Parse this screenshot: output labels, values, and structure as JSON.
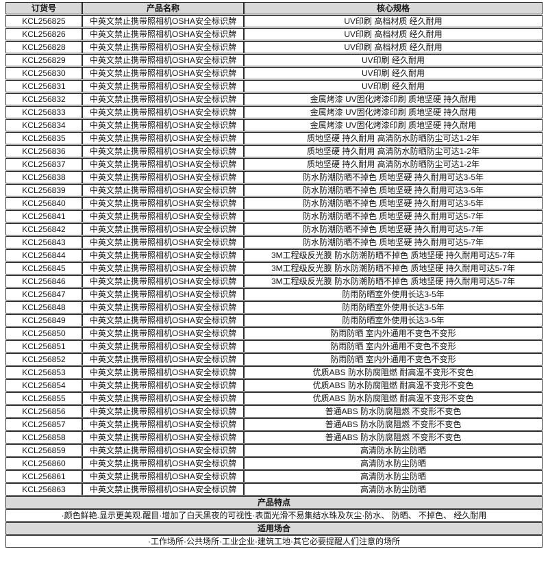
{
  "table": {
    "headers": [
      "订货号",
      "产品名称",
      "核心规格"
    ],
    "product_name": "中英文禁止携带照相机OSHA安全标识牌",
    "rows": [
      {
        "sku": "KCL256825",
        "spec": "UV印刷 高档材质 经久耐用"
      },
      {
        "sku": "KCL256826",
        "spec": "UV印刷 高档材质 经久耐用"
      },
      {
        "sku": "KCL256828",
        "spec": "UV印刷 高档材质 经久耐用"
      },
      {
        "sku": "KCL256829",
        "spec": "UV印刷 经久耐用"
      },
      {
        "sku": "KCL256830",
        "spec": "UV印刷 经久耐用"
      },
      {
        "sku": "KCL256831",
        "spec": "UV印刷 经久耐用"
      },
      {
        "sku": "KCL256832",
        "spec": "金属烤漆 UV固化烤漆印刷 质地坚硬 持久耐用"
      },
      {
        "sku": "KCL256833",
        "spec": "金属烤漆 UV固化烤漆印刷 质地坚硬 持久耐用"
      },
      {
        "sku": "KCL256834",
        "spec": "金属烤漆 UV固化烤漆印刷 质地坚硬 持久耐用"
      },
      {
        "sku": "KCL256835",
        "spec": "质地坚硬 持久耐用 高清防水防晒防尘可达1-2年"
      },
      {
        "sku": "KCL256836",
        "spec": "质地坚硬 持久耐用 高清防水防晒防尘可达1-2年"
      },
      {
        "sku": "KCL256837",
        "spec": "质地坚硬 持久耐用 高清防水防晒防尘可达1-2年"
      },
      {
        "sku": "KCL256838",
        "spec": "防水防潮防晒不掉色 质地坚硬 持久耐用可达3-5年"
      },
      {
        "sku": "KCL256839",
        "spec": "防水防潮防晒不掉色 质地坚硬 持久耐用可达3-5年"
      },
      {
        "sku": "KCL256840",
        "spec": "防水防潮防晒不掉色 质地坚硬 持久耐用可达3-5年"
      },
      {
        "sku": "KCL256841",
        "spec": "防水防潮防晒不掉色 质地坚硬 持久耐用可达5-7年"
      },
      {
        "sku": "KCL256842",
        "spec": "防水防潮防晒不掉色 质地坚硬 持久耐用可达5-7年"
      },
      {
        "sku": "KCL256843",
        "spec": "防水防潮防晒不掉色 质地坚硬 持久耐用可达5-7年"
      },
      {
        "sku": "KCL256844",
        "spec": "3M工程级反光膜 防水防潮防晒不掉色 质地坚硬 持久耐用可达5-7年"
      },
      {
        "sku": "KCL256845",
        "spec": "3M工程级反光膜 防水防潮防晒不掉色 质地坚硬 持久耐用可达5-7年"
      },
      {
        "sku": "KCL256846",
        "spec": "3M工程级反光膜 防水防潮防晒不掉色 质地坚硬 持久耐用可达5-7年"
      },
      {
        "sku": "KCL256847",
        "spec": "防雨防晒室外使用长达3-5年"
      },
      {
        "sku": "KCL256848",
        "spec": "防雨防晒室外使用长达3-5年"
      },
      {
        "sku": "KCL256849",
        "spec": "防雨防晒室外使用长达3-5年"
      },
      {
        "sku": "KCL256850",
        "spec": "防雨防晒 室内外通用不变色不变形"
      },
      {
        "sku": "KCL256851",
        "spec": "防雨防晒 室内外通用不变色不变形"
      },
      {
        "sku": "KCL256852",
        "spec": "防雨防晒 室内外通用不变色不变形"
      },
      {
        "sku": "KCL256853",
        "spec": "优质ABS 防水防腐阻燃 耐高温不变形不变色"
      },
      {
        "sku": "KCL256854",
        "spec": "优质ABS 防水防腐阻燃 耐高温不变形不变色"
      },
      {
        "sku": "KCL256855",
        "spec": "优质ABS 防水防腐阻燃 耐高温不变形不变色"
      },
      {
        "sku": "KCL256856",
        "spec": "普通ABS 防水防腐阻燃 不变形不变色"
      },
      {
        "sku": "KCL256857",
        "spec": "普通ABS 防水防腐阻燃 不变形不变色"
      },
      {
        "sku": "KCL256858",
        "spec": "普通ABS 防水防腐阻燃 不变形不变色"
      },
      {
        "sku": "KCL256859",
        "spec": "高清防水防尘防晒"
      },
      {
        "sku": "KCL256860",
        "spec": "高清防水防尘防晒"
      },
      {
        "sku": "KCL256861",
        "spec": "高清防水防尘防晒"
      },
      {
        "sku": "KCL256863",
        "spec": "高清防水防尘防晒"
      }
    ]
  },
  "sections": {
    "features_title": "产品特点",
    "features_text": "·颜色鲜艳.显示更美观.醒目·增加了白天黑夜的可视性·表面光滑不易集结水珠及灰尘·防水、 防晒、 不掉色、 经久耐用",
    "occasions_title": "适用场合",
    "occasions_text": "·工作场所·公共场所·工业企业·建筑工地·其它必要提醒人们注意的场所"
  },
  "colors": {
    "header_bg": "#d9d9d9",
    "border": "#2b2b2b",
    "text": "#141414"
  }
}
